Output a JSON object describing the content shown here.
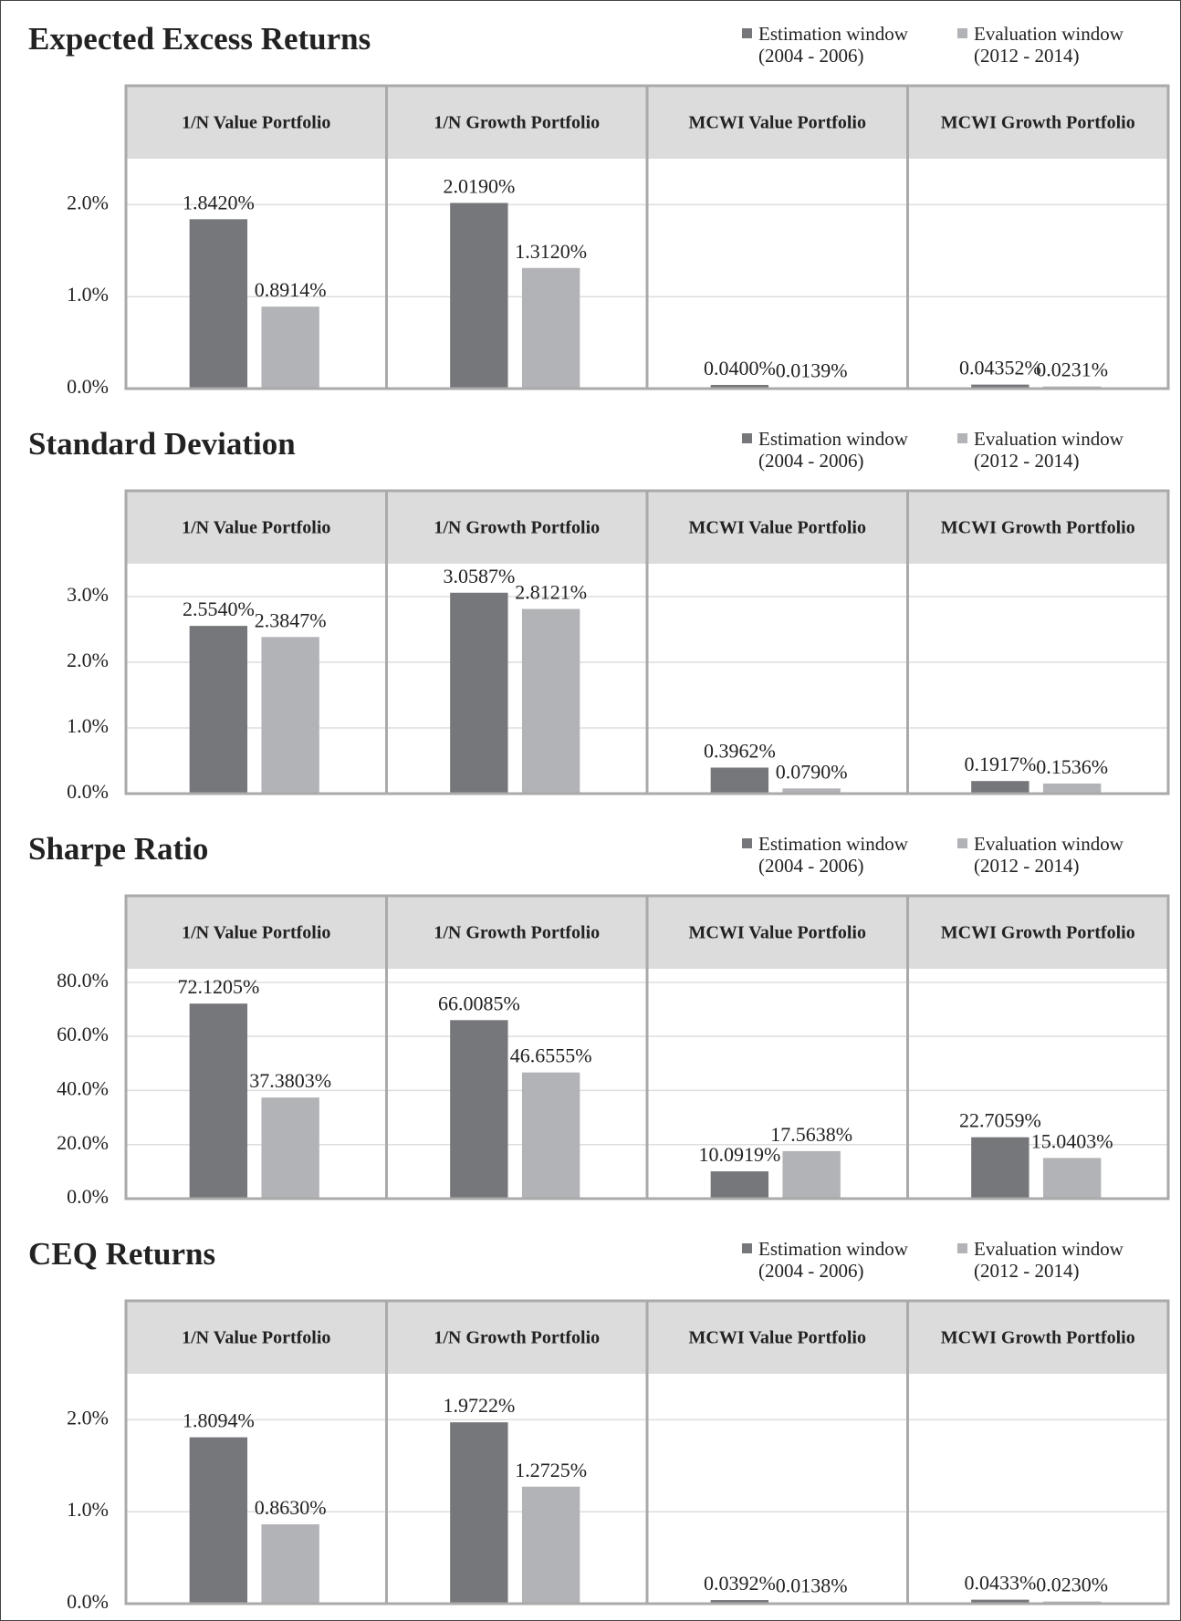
{
  "chart_data": [
    {
      "type": "bar",
      "title": "Expected Excess Returns",
      "categories": [
        "1/N Value Portfolio",
        "1/N Growth Portfolio",
        "MCWI Value Portfolio",
        "MCWI Growth Portfolio"
      ],
      "series": [
        {
          "name": "Estimation window (2004 - 2006)",
          "color": "#76777b",
          "values": [
            1.842,
            2.019,
            0.04,
            0.04352
          ],
          "value_labels": [
            "1.8420%",
            "2.0190%",
            "0.0400%",
            "0.04352%"
          ]
        },
        {
          "name": "Evaluation window (2012 - 2014)",
          "color": "#b2b3b6",
          "values": [
            0.8914,
            1.312,
            0.0139,
            0.0231
          ],
          "value_labels": [
            "0.8914%",
            "1.3120%",
            "0.0139%",
            "0.0231%"
          ]
        }
      ],
      "ylim": [
        0,
        2.5
      ],
      "yticks": [
        {
          "value": 0,
          "label": "0.0%"
        },
        {
          "value": 1,
          "label": "1.0%"
        },
        {
          "value": 2,
          "label": "2.0%"
        }
      ],
      "grid": true
    },
    {
      "type": "bar",
      "title": "Standard Deviation",
      "categories": [
        "1/N Value Portfolio",
        "1/N Growth Portfolio",
        "MCWI Value Portfolio",
        "MCWI Growth Portfolio"
      ],
      "series": [
        {
          "name": "Estimation window (2004 - 2006)",
          "color": "#76777b",
          "values": [
            2.554,
            3.0587,
            0.3962,
            0.1917
          ],
          "value_labels": [
            "2.5540%",
            "3.0587%",
            "0.3962%",
            "0.1917%"
          ]
        },
        {
          "name": "Evaluation window (2012 - 2014)",
          "color": "#b2b3b6",
          "values": [
            2.3847,
            2.8121,
            0.079,
            0.1536
          ],
          "value_labels": [
            "2.3847%",
            "2.8121%",
            "0.0790%",
            "0.1536%"
          ]
        }
      ],
      "ylim": [
        0,
        3.5
      ],
      "yticks": [
        {
          "value": 0,
          "label": "0.0%"
        },
        {
          "value": 1,
          "label": "1.0%"
        },
        {
          "value": 2,
          "label": "2.0%"
        },
        {
          "value": 3,
          "label": "3.0%"
        }
      ],
      "grid": true
    },
    {
      "type": "bar",
      "title": "Sharpe Ratio",
      "categories": [
        "1/N Value Portfolio",
        "1/N Growth Portfolio",
        "MCWI Value Portfolio",
        "MCWI Growth Portfolio"
      ],
      "series": [
        {
          "name": "Estimation window (2004 - 2006)",
          "color": "#76777b",
          "values": [
            72.1205,
            66.0085,
            10.0919,
            22.7059
          ],
          "value_labels": [
            "72.1205%",
            "66.0085%",
            "10.0919%",
            "22.7059%"
          ]
        },
        {
          "name": "Evaluation window (2012 - 2014)",
          "color": "#b2b3b6",
          "values": [
            37.3803,
            46.6555,
            17.5638,
            15.0403
          ],
          "value_labels": [
            "37.3803%",
            "46.6555%",
            "17.5638%",
            "15.0403%"
          ]
        }
      ],
      "ylim": [
        0,
        85
      ],
      "yticks": [
        {
          "value": 0,
          "label": "0.0%"
        },
        {
          "value": 20,
          "label": "20.0%"
        },
        {
          "value": 40,
          "label": "40.0%"
        },
        {
          "value": 60,
          "label": "60.0%"
        },
        {
          "value": 80,
          "label": "80.0%"
        }
      ],
      "grid": true
    },
    {
      "type": "bar",
      "title": "CEQ Returns",
      "categories": [
        "1/N Value Portfolio",
        "1/N Growth Portfolio",
        "MCWI Value Portfolio",
        "MCWI Growth Portfolio"
      ],
      "series": [
        {
          "name": "Estimation window (2004 - 2006)",
          "color": "#76777b",
          "values": [
            1.8094,
            1.9722,
            0.0392,
            0.0433
          ],
          "value_labels": [
            "1.8094%",
            "1.9722%",
            "0.0392%",
            "0.0433%"
          ]
        },
        {
          "name": "Evaluation window (2012 - 2014)",
          "color": "#b2b3b6",
          "values": [
            0.863,
            1.2725,
            0.0138,
            0.023
          ],
          "value_labels": [
            "0.8630%",
            "1.2725%",
            "0.0138%",
            "0.0230%"
          ]
        }
      ],
      "ylim": [
        0,
        2.5
      ],
      "yticks": [
        {
          "value": 0,
          "label": "0.0%"
        },
        {
          "value": 1,
          "label": "1.0%"
        },
        {
          "value": 2,
          "label": "2.0%"
        }
      ],
      "grid": true
    }
  ]
}
